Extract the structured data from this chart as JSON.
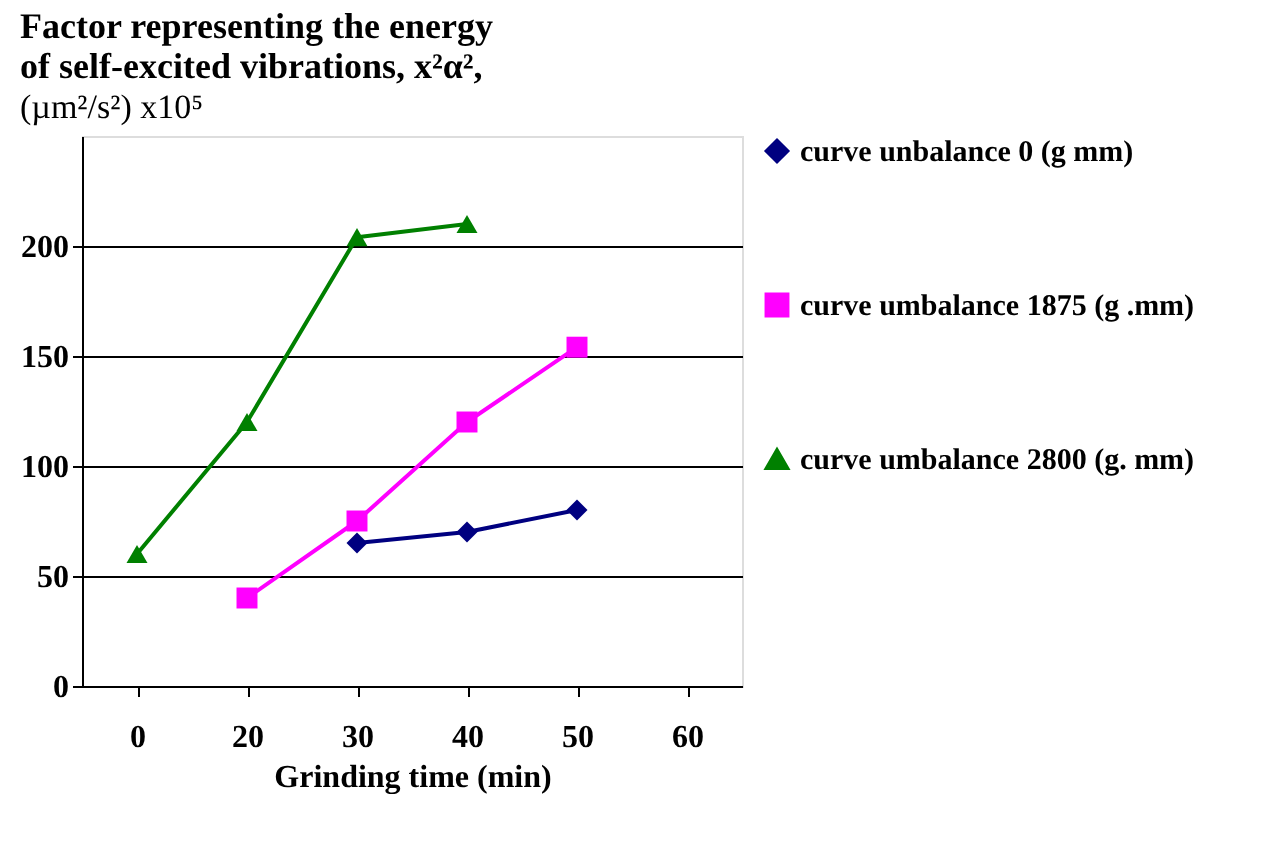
{
  "chart_data": {
    "type": "line",
    "title": [
      "Factor representing the energy",
      "of self-excited vibrations, x²α²,"
    ],
    "subtitle": "(µm²/s²) x10⁵",
    "xlabel": "Grinding time (min)",
    "categories": [
      "0",
      "20",
      "30",
      "40",
      "50",
      "60"
    ],
    "series": [
      {
        "name": "curve unbalance 0 (g mm)",
        "color": "#000080",
        "marker": "diamond",
        "values": [
          null,
          null,
          65,
          70,
          80,
          null
        ]
      },
      {
        "name": "curve  umbalance 1875 (g .mm)",
        "color": "#ff00ff",
        "marker": "square",
        "values": [
          null,
          40,
          75,
          120,
          154,
          null
        ]
      },
      {
        "name": "curve  umbalance 2800 (g. mm)",
        "color": "#008000",
        "marker": "triangle",
        "values": [
          60,
          120,
          204,
          210,
          null,
          null
        ]
      }
    ],
    "ylim": [
      0,
      250
    ],
    "yticks": [
      0,
      50,
      100,
      150,
      200
    ],
    "grid": "y",
    "legend": "right",
    "line_style": "solid"
  }
}
